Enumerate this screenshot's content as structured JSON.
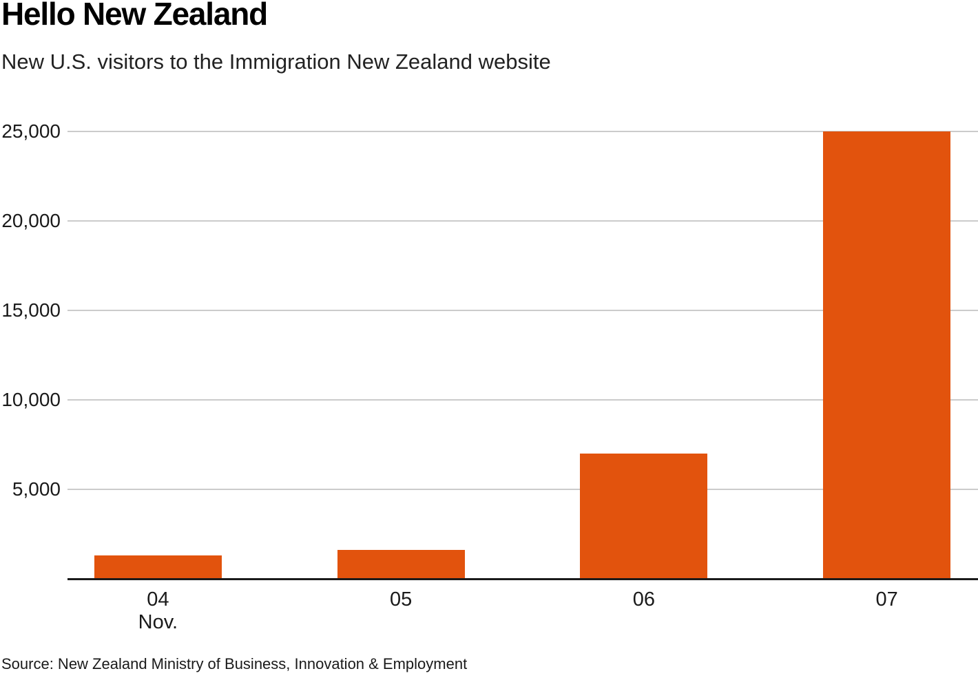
{
  "header": {
    "title": "Hello New Zealand",
    "subtitle": "New U.S. visitors to the Immigration New Zealand website"
  },
  "footer": {
    "source": "Source: New Zealand Ministry of Business, Innovation & Employment"
  },
  "chart_data": {
    "type": "bar",
    "title": "Hello New Zealand",
    "subtitle": "New U.S. visitors to the Immigration New Zealand website",
    "categories": [
      "04",
      "05",
      "06",
      "07"
    ],
    "x_sub_label": {
      "index": 0,
      "text": "Nov."
    },
    "values": [
      1300,
      1600,
      7000,
      25000
    ],
    "xlabel": "",
    "ylabel": "",
    "ylim": [
      0,
      25000
    ],
    "yticks": [
      5000,
      10000,
      15000,
      20000,
      25000
    ],
    "ytick_labels": [
      "5,000",
      "10,000",
      "15,000",
      "20,000",
      "25,000"
    ],
    "grid": true,
    "legend": false,
    "bar_color": "#e2530d",
    "gridline_color": "#cbcbcb",
    "axis_color": "#1a1a1a",
    "source": "Source: New Zealand Ministry of Business, Innovation & Employment"
  }
}
